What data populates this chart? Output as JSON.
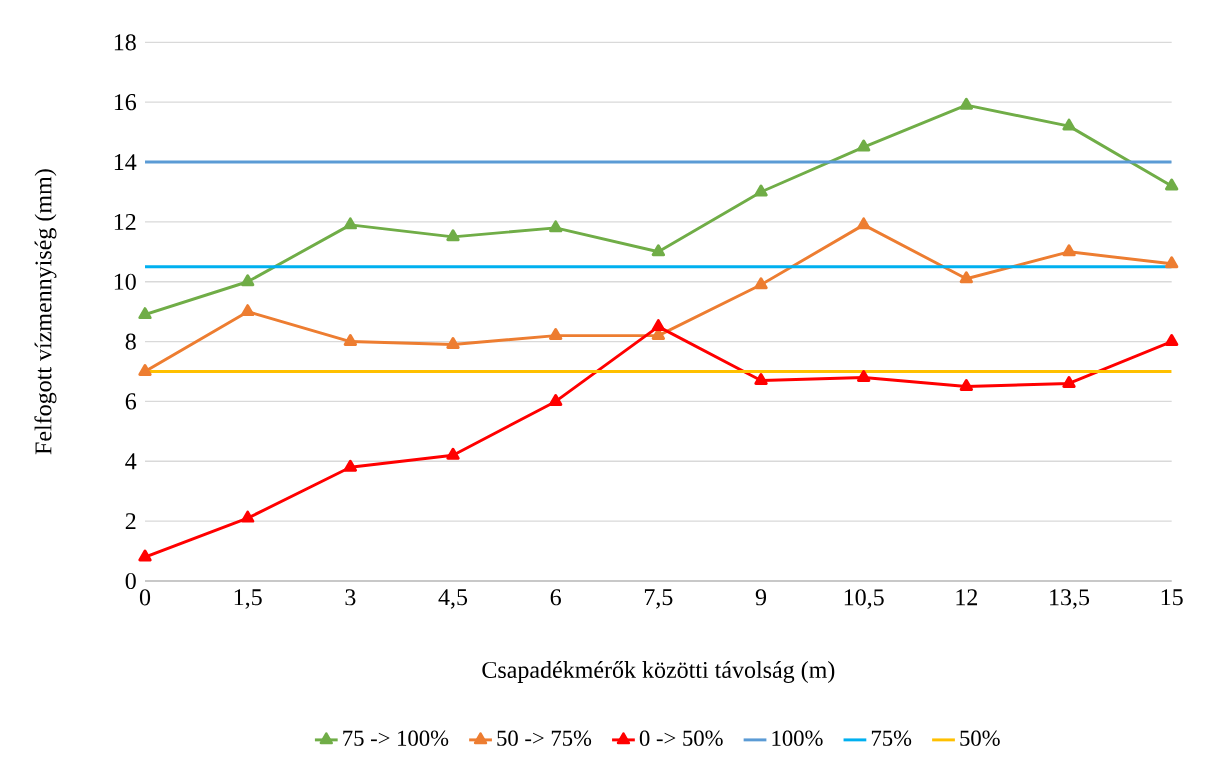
{
  "chart_data": {
    "type": "line",
    "xlabel": "Csapadékmérők közötti távolság (m)",
    "ylabel": "Felfogott vízmennyiség (mm)",
    "categories": [
      "0",
      "1,5",
      "3",
      "4,5",
      "6",
      "7,5",
      "9",
      "10,5",
      "12",
      "13,5",
      "15"
    ],
    "series": [
      {
        "name": "75 -> 100%",
        "color": "#70ad47",
        "marker": "triangle",
        "values": [
          8.9,
          10.0,
          11.9,
          11.5,
          11.8,
          11.0,
          13.0,
          14.5,
          15.9,
          15.2,
          13.2
        ]
      },
      {
        "name": "50 -> 75%",
        "color": "#ed7d31",
        "marker": "triangle",
        "values": [
          7.0,
          9.0,
          8.0,
          7.9,
          8.2,
          8.2,
          9.9,
          11.9,
          10.1,
          11.0,
          10.6
        ]
      },
      {
        "name": "0 -> 50%",
        "color": "#ff0000",
        "marker": "triangle",
        "values": [
          0.8,
          2.1,
          3.8,
          4.2,
          6.0,
          8.5,
          6.7,
          6.8,
          6.5,
          6.6,
          8.0
        ]
      },
      {
        "name": "100%",
        "color": "#5b9bd5",
        "marker": "none",
        "values": [
          14,
          14,
          14,
          14,
          14,
          14,
          14,
          14,
          14,
          14,
          14
        ]
      },
      {
        "name": "75%",
        "color": "#00b0f0",
        "marker": "none",
        "values": [
          10.5,
          10.5,
          10.5,
          10.5,
          10.5,
          10.5,
          10.5,
          10.5,
          10.5,
          10.5,
          10.5
        ]
      },
      {
        "name": "50%",
        "color": "#ffc000",
        "marker": "none",
        "values": [
          7,
          7,
          7,
          7,
          7,
          7,
          7,
          7,
          7,
          7,
          7
        ]
      }
    ],
    "ylim": [
      0,
      18
    ],
    "yticks": [
      0,
      2,
      4,
      6,
      8,
      10,
      12,
      14,
      16,
      18
    ],
    "grid": "y",
    "legend": "bottom"
  }
}
